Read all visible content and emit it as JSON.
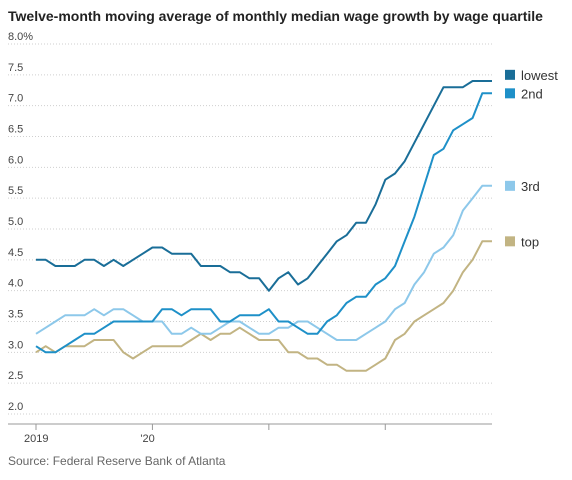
{
  "title": "Twelve-month moving average of monthly median wage growth by wage quartile",
  "source": "Source: Federal Reserve Bank of Atlanta",
  "chart_data": {
    "type": "line",
    "ylim": [
      2.0,
      8.0
    ],
    "yticks": [
      "8.0%",
      "7.5",
      "7.0",
      "6.5",
      "6.0",
      "5.5",
      "5.0",
      "4.5",
      "4.0",
      "3.5",
      "3.0",
      "2.5",
      "2.0"
    ],
    "xticks": [
      {
        "label": "2019",
        "index": 0
      },
      {
        "label": "'20",
        "index": 12
      },
      {
        "label": "",
        "index": 24
      },
      {
        "label": "",
        "index": 36
      }
    ],
    "grid": true,
    "legend_position": "right",
    "x": [
      "2019-01",
      "2019-02",
      "2019-03",
      "2019-04",
      "2019-05",
      "2019-06",
      "2019-07",
      "2019-08",
      "2019-09",
      "2019-10",
      "2019-11",
      "2019-12",
      "2020-01",
      "2020-02",
      "2020-03",
      "2020-04",
      "2020-05",
      "2020-06",
      "2020-07",
      "2020-08",
      "2020-09",
      "2020-10",
      "2020-11",
      "2020-12",
      "2021-01",
      "2021-02",
      "2021-03",
      "2021-04",
      "2021-05",
      "2021-06",
      "2021-07",
      "2021-08",
      "2021-09",
      "2021-10",
      "2021-11",
      "2021-12",
      "2022-01",
      "2022-02",
      "2022-03",
      "2022-04",
      "2022-05",
      "2022-06",
      "2022-07",
      "2022-08",
      "2022-09",
      "2022-10",
      "2022-11",
      "2022-12"
    ],
    "series": [
      {
        "name": "lowest",
        "color": "#1a6e98",
        "values": [
          4.5,
          4.5,
          4.4,
          4.4,
          4.4,
          4.5,
          4.5,
          4.4,
          4.5,
          4.4,
          4.5,
          4.6,
          4.7,
          4.7,
          4.6,
          4.6,
          4.6,
          4.4,
          4.4,
          4.4,
          4.3,
          4.3,
          4.2,
          4.2,
          4.0,
          4.2,
          4.3,
          4.1,
          4.2,
          4.4,
          4.6,
          4.8,
          4.9,
          5.1,
          5.1,
          5.4,
          5.8,
          5.9,
          6.1,
          6.4,
          6.7,
          7.0,
          7.3,
          7.3,
          7.3,
          7.4,
          7.4,
          7.4
        ]
      },
      {
        "name": "2nd",
        "color": "#1e90c8",
        "values": [
          3.1,
          3.0,
          3.0,
          3.1,
          3.2,
          3.3,
          3.3,
          3.4,
          3.5,
          3.5,
          3.5,
          3.5,
          3.5,
          3.7,
          3.7,
          3.6,
          3.7,
          3.7,
          3.7,
          3.5,
          3.5,
          3.6,
          3.6,
          3.6,
          3.7,
          3.5,
          3.5,
          3.4,
          3.3,
          3.3,
          3.5,
          3.6,
          3.8,
          3.9,
          3.9,
          4.1,
          4.2,
          4.4,
          4.8,
          5.2,
          5.7,
          6.2,
          6.3,
          6.6,
          6.7,
          6.8,
          7.2,
          7.2
        ]
      },
      {
        "name": "3rd",
        "color": "#8dc8ea",
        "values": [
          3.3,
          3.4,
          3.5,
          3.6,
          3.6,
          3.6,
          3.7,
          3.6,
          3.7,
          3.7,
          3.6,
          3.5,
          3.5,
          3.5,
          3.3,
          3.3,
          3.4,
          3.3,
          3.3,
          3.4,
          3.5,
          3.5,
          3.4,
          3.3,
          3.3,
          3.4,
          3.4,
          3.5,
          3.5,
          3.4,
          3.3,
          3.2,
          3.2,
          3.2,
          3.3,
          3.4,
          3.5,
          3.7,
          3.8,
          4.1,
          4.3,
          4.6,
          4.7,
          4.9,
          5.3,
          5.5,
          5.7,
          5.7
        ]
      },
      {
        "name": "top",
        "color": "#c2b483",
        "values": [
          3.0,
          3.1,
          3.0,
          3.1,
          3.1,
          3.1,
          3.2,
          3.2,
          3.2,
          3.0,
          2.9,
          3.0,
          3.1,
          3.1,
          3.1,
          3.1,
          3.2,
          3.3,
          3.2,
          3.3,
          3.3,
          3.4,
          3.3,
          3.2,
          3.2,
          3.2,
          3.0,
          3.0,
          2.9,
          2.9,
          2.8,
          2.8,
          2.7,
          2.7,
          2.7,
          2.8,
          2.9,
          3.2,
          3.3,
          3.5,
          3.6,
          3.7,
          3.8,
          4.0,
          4.3,
          4.5,
          4.8,
          4.8
        ]
      }
    ]
  }
}
